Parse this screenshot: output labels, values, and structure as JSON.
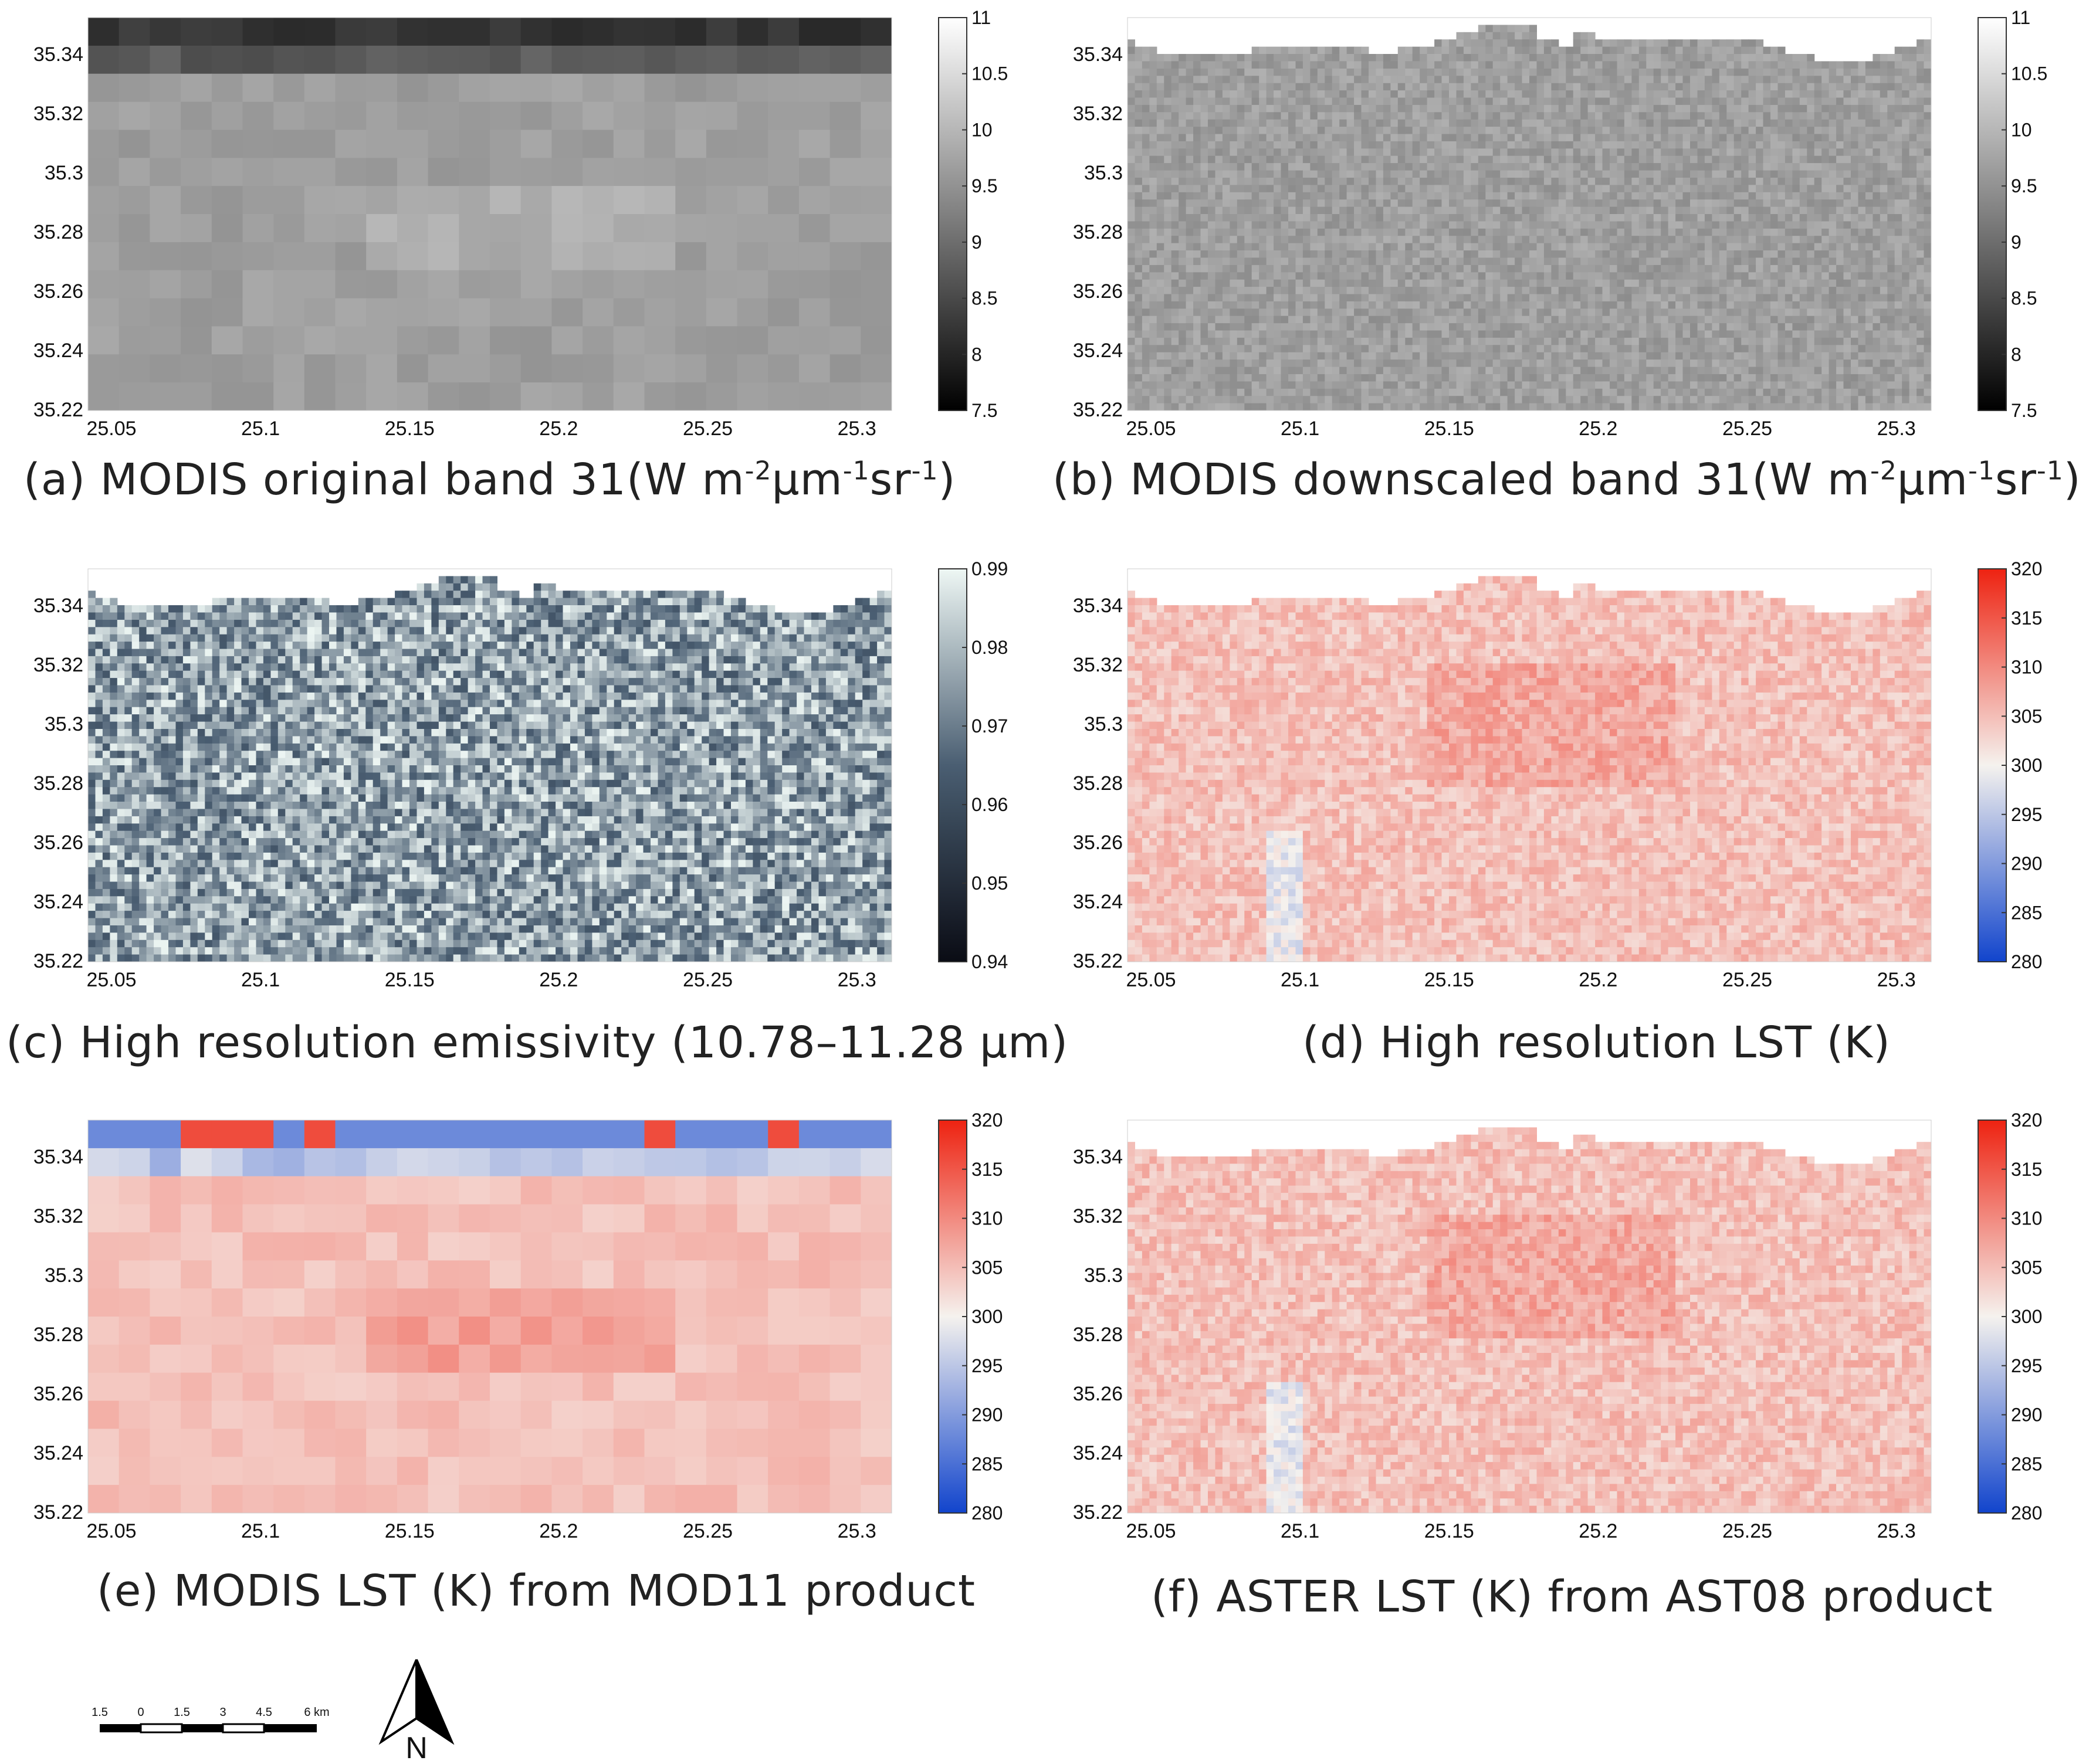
{
  "x_ticks": [
    "25.05",
    "25.1",
    "25.15",
    "25.2",
    "25.25",
    "25.3"
  ],
  "y_ticks": [
    "35.34",
    "35.32",
    "35.3",
    "35.28",
    "35.26",
    "35.24",
    "35.22"
  ],
  "colors": {
    "gray_low": "#000000",
    "gray_high": "#ffffff",
    "emis_low": "#0a0c14",
    "emis_mid": "#4a5e72",
    "emis_high": "#eef7f4",
    "lst_low": "#1144cc",
    "lst_mid": "#f5f2ee",
    "lst_high": "#ee2211"
  },
  "panels": [
    {
      "id": "a",
      "caption_pre": "(a) MODIS original band 31(W m",
      "sup1": "-2",
      "mid1": "μm",
      "sup2": "-1",
      "mid2": "sr",
      "sup3": "-1",
      "caption_post": ")",
      "colormap": "gray",
      "style": "coarse",
      "colorbar": [
        "11",
        "10.5",
        "10",
        "9.5",
        "9",
        "8.5",
        "8",
        "7.5"
      ]
    },
    {
      "id": "b",
      "caption_pre": "(b) MODIS downscaled band 31(W m",
      "sup1": "-2",
      "mid1": "μm",
      "sup2": "-1",
      "mid2": "sr",
      "sup3": "-1",
      "caption_post": ")",
      "colormap": "gray",
      "style": "fine",
      "colorbar": [
        "11",
        "10.5",
        "10",
        "9.5",
        "9",
        "8.5",
        "8",
        "7.5"
      ]
    },
    {
      "id": "c",
      "caption": "(c) High resolution emissivity (10.78–11.28 μm)",
      "colormap": "emis",
      "style": "fine",
      "colorbar": [
        "0.99",
        "0.98",
        "0.97",
        "0.96",
        "0.95",
        "0.94"
      ]
    },
    {
      "id": "d",
      "caption": "(d) High resolution LST (K)",
      "colormap": "lst",
      "style": "fine",
      "colorbar": [
        "320",
        "315",
        "310",
        "305",
        "300",
        "295",
        "290",
        "285",
        "280"
      ]
    },
    {
      "id": "e",
      "caption": "(e) MODIS LST (K) from MOD11 product",
      "colormap": "lst",
      "style": "coarse",
      "colorbar": [
        "320",
        "315",
        "310",
        "305",
        "300",
        "295",
        "290",
        "285",
        "280"
      ]
    },
    {
      "id": "f",
      "caption": "(f) ASTER LST (K) from AST08 product",
      "colormap": "lst",
      "style": "fine",
      "colorbar": [
        "320",
        "315",
        "310",
        "305",
        "300",
        "295",
        "290",
        "285",
        "280"
      ]
    }
  ],
  "scalebar": {
    "labels": [
      "1.5",
      "0",
      "1.5",
      "3",
      "4.5",
      "6 km"
    ]
  },
  "north_label": "N"
}
